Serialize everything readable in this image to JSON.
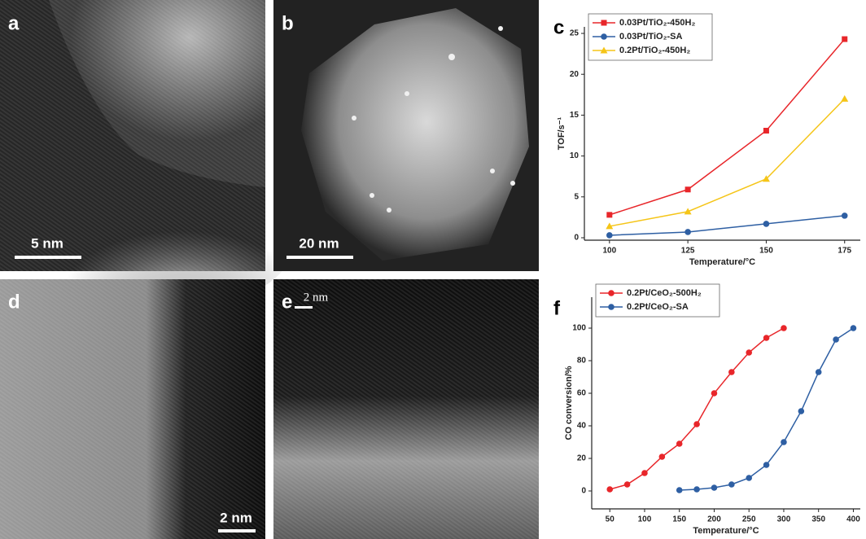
{
  "images": [
    {
      "label": "a",
      "scale_bar": "5 nm"
    },
    {
      "label": "b",
      "scale_bar": "20 nm"
    },
    {
      "label": "d",
      "scale_bar": "2 nm"
    },
    {
      "label": "e",
      "scale_bar": "2 nm"
    }
  ],
  "chart_data": [
    {
      "type": "line",
      "panel": "c",
      "xlabel": "Temperature/°C",
      "ylabel": "TOF/s⁻¹",
      "x": [
        100,
        125,
        150,
        175
      ],
      "xlim": [
        92,
        180
      ],
      "xticks": [
        100,
        125,
        150,
        175
      ],
      "ylim": [
        -0.3,
        25.8
      ],
      "yticks": [
        0,
        5,
        10,
        15,
        20,
        25
      ],
      "legend": "top-left",
      "series": [
        {
          "name": "0.03Pt/TiO₂-450H₂",
          "color": "#e8262a",
          "marker": "square",
          "values": [
            2.8,
            5.9,
            13.1,
            24.3
          ]
        },
        {
          "name": "0.03Pt/TiO₂-SA",
          "color": "#2e5fa3",
          "marker": "circle",
          "values": [
            0.3,
            0.7,
            1.7,
            2.7
          ]
        },
        {
          "name": "0.2Pt/TiO₂-450H₂",
          "color": "#f5c518",
          "marker": "triangle",
          "values": [
            1.4,
            3.2,
            7.2,
            17.0
          ]
        }
      ]
    },
    {
      "type": "line",
      "panel": "f",
      "xlabel": "Temperature/°C",
      "ylabel": "CO conversion/%",
      "xlim": [
        24,
        410
      ],
      "xticks": [
        50,
        100,
        150,
        200,
        250,
        300,
        350,
        400
      ],
      "ylim": [
        -11,
        119
      ],
      "yticks": [
        0,
        20,
        40,
        60,
        80,
        100
      ],
      "legend": "top-left",
      "series": [
        {
          "name": "0.2Pt/CeO₂-500H₂",
          "color": "#e8262a",
          "marker": "circle",
          "x": [
            50,
            75,
            100,
            125,
            150,
            175,
            200,
            225,
            250,
            275,
            300
          ],
          "values": [
            1,
            4,
            11,
            21,
            29,
            41,
            60,
            73,
            85,
            94,
            100
          ]
        },
        {
          "name": "0.2Pt/CeO₂-SA",
          "color": "#2e5fa3",
          "marker": "circle",
          "x": [
            150,
            175,
            200,
            225,
            250,
            275,
            300,
            325,
            350,
            375,
            400
          ],
          "values": [
            0.5,
            1,
            2,
            4,
            8,
            16,
            30,
            49,
            73,
            93,
            100
          ]
        }
      ]
    }
  ]
}
